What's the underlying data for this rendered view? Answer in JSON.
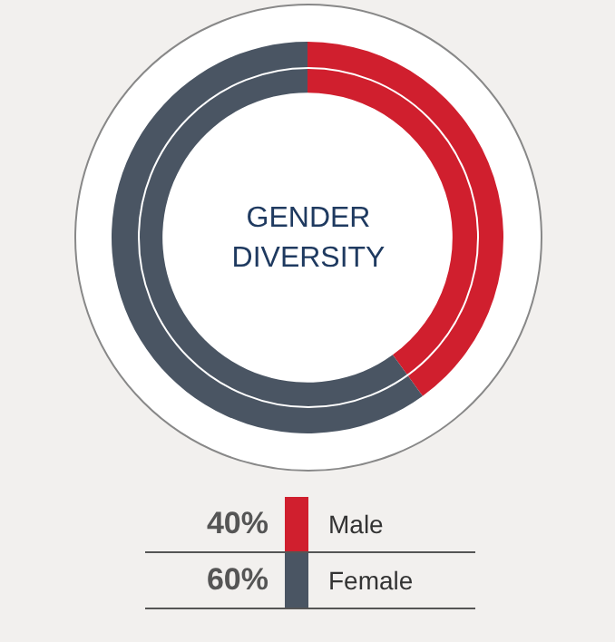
{
  "chart_data": {
    "type": "donut",
    "title": "GENDER DIVERSITY",
    "categories": [
      "Male",
      "Female"
    ],
    "values": [
      40,
      60
    ],
    "colors": [
      "#d01f2e",
      "#4a5563"
    ],
    "value_labels": [
      "40%",
      "60%"
    ],
    "legend": "bottom"
  }
}
